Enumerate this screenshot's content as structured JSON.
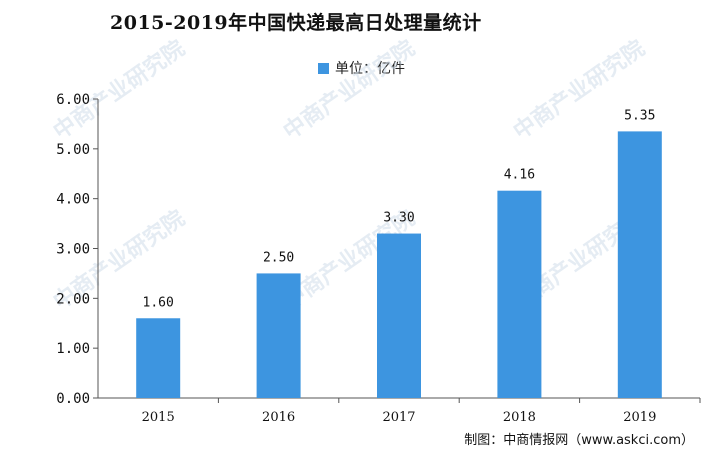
{
  "title": "2015-2019年中国快递最高日处理量统计",
  "source": "制图：中商情报网（www.askci.com）",
  "watermark": "中商产业研究院",
  "colors": {
    "bar": "#3d95e0",
    "axis": "#555555",
    "watermark": "#c6d6e6"
  },
  "chart_data": {
    "type": "bar",
    "title": "2015-2019年中国快递最高日处理量统计",
    "xlabel": "",
    "ylabel": "",
    "categories": [
      "2015",
      "2016",
      "2017",
      "2018",
      "2019"
    ],
    "series": [
      {
        "name": "单位：亿件",
        "values": [
          1.6,
          2.5,
          3.3,
          4.16,
          5.35
        ]
      }
    ],
    "data_labels": [
      "1.60",
      "2.50",
      "3.30",
      "4.16",
      "5.35"
    ],
    "ylim": [
      0,
      6
    ],
    "yticks": [
      "0.00",
      "1.00",
      "2.00",
      "3.00",
      "4.00",
      "5.00",
      "6.00"
    ],
    "grid": false,
    "legend": "top-center"
  }
}
